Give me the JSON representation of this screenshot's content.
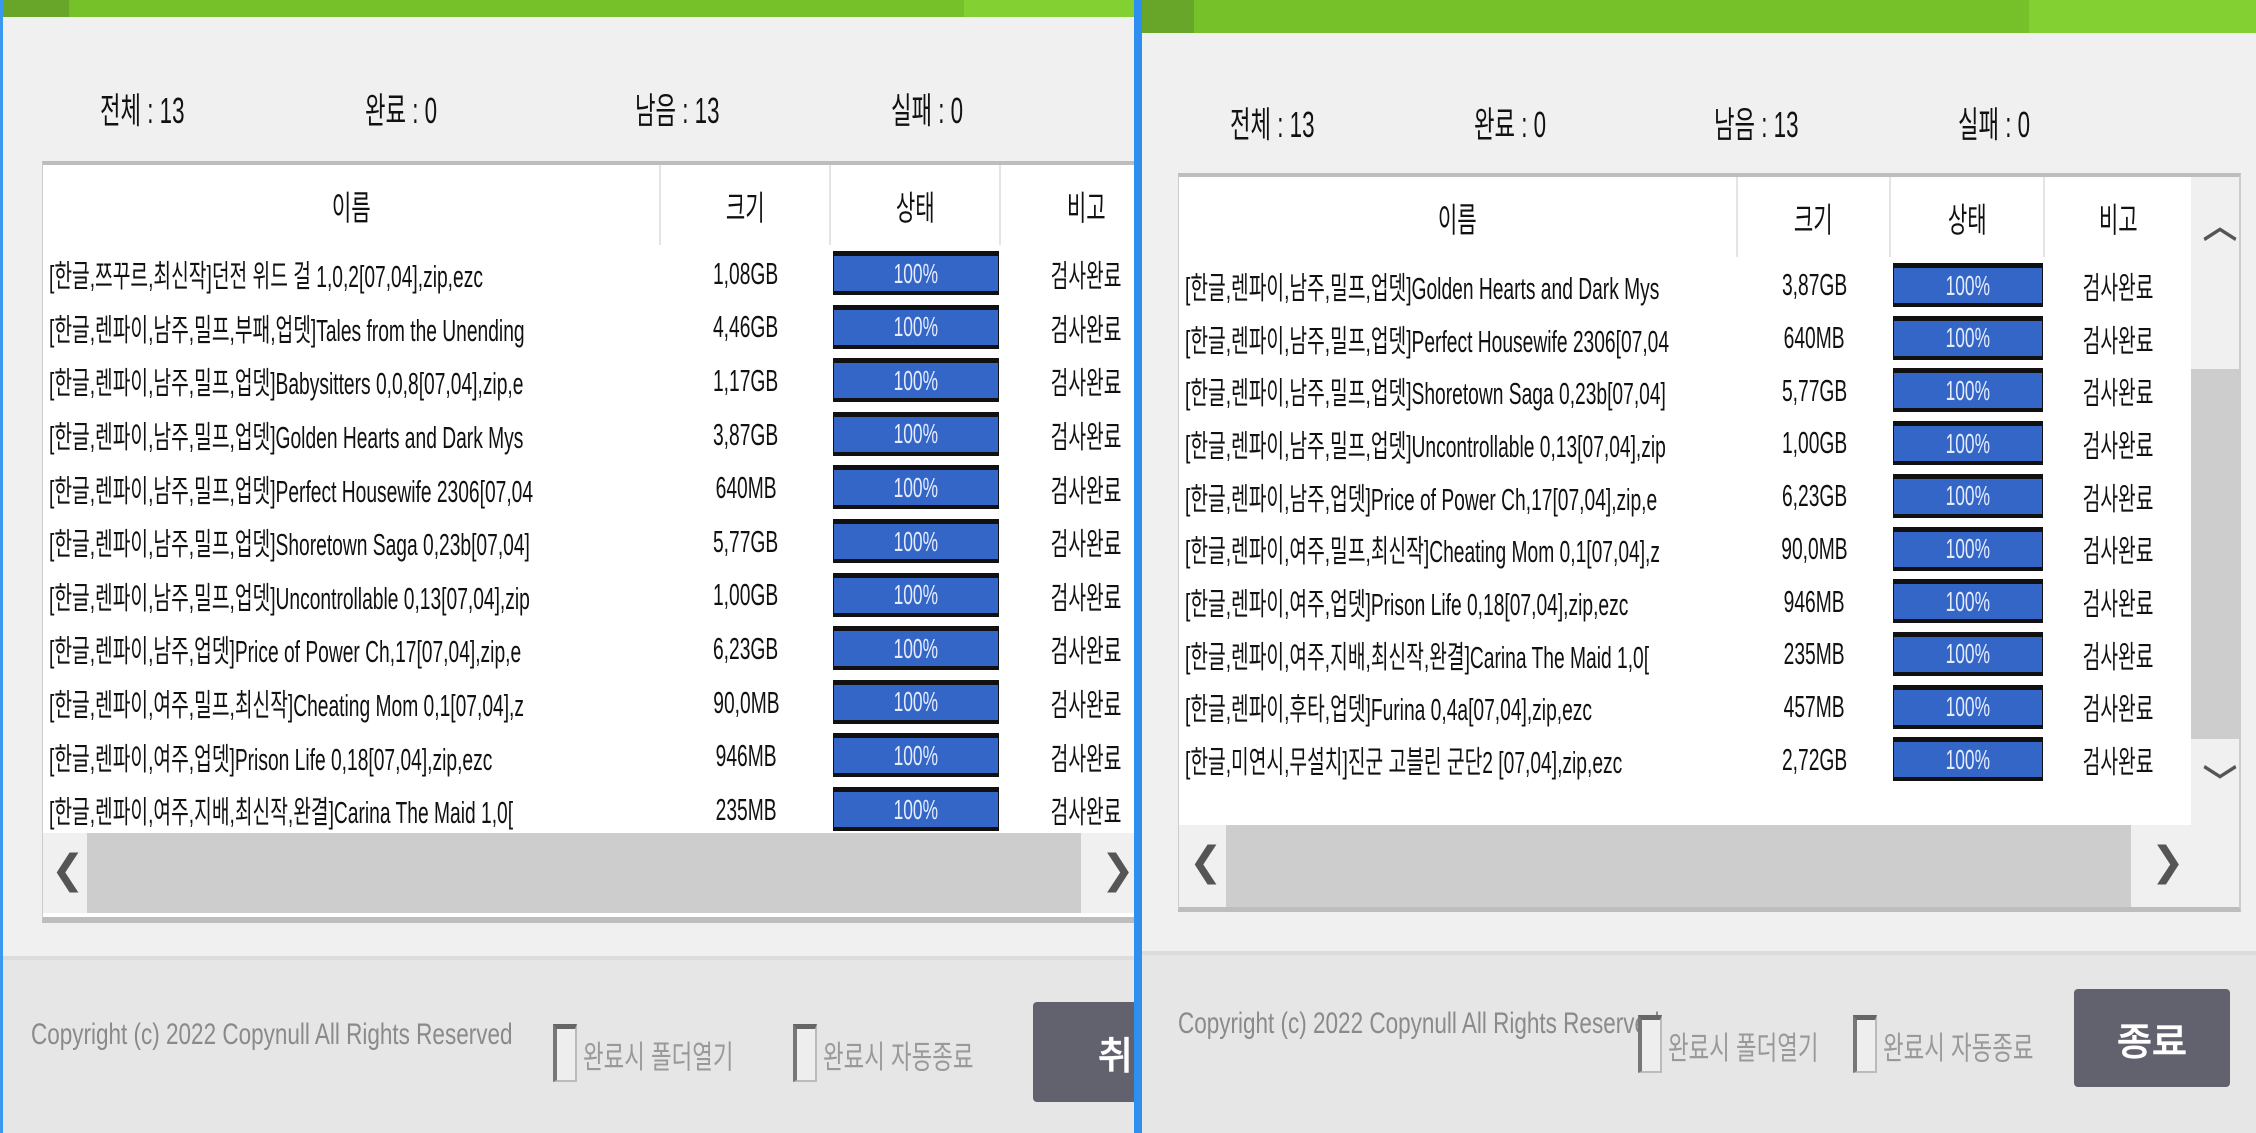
{
  "colors": {
    "accent_green": "#76c12a",
    "progress_blue": "#3366c6",
    "button_bg": "#62616e",
    "divider_blue": "#2f8ff0"
  },
  "left": {
    "stats": [
      "전체 : 13",
      "완료 : 0",
      "남음 : 13",
      "실패 : 0"
    ],
    "headers": [
      "이름",
      "크기",
      "상태",
      "비고"
    ],
    "rows": [
      {
        "name": "[한글,쯔꾸르,최신작]던전 위드 걸 1,0,2[07,04],zip,ezc",
        "size": "1,08GB",
        "progress": 100,
        "progress_label": "100%",
        "note": "검사완료"
      },
      {
        "name": "[한글,렌파이,남주,밀프,부패,업뎃]Tales from the Unending",
        "size": "4,46GB",
        "progress": 100,
        "progress_label": "100%",
        "note": "검사완료"
      },
      {
        "name": "[한글,렌파이,남주,밀프,업뎃]Babysitters 0,0,8[07,04],zip,e",
        "size": "1,17GB",
        "progress": 100,
        "progress_label": "100%",
        "note": "검사완료"
      },
      {
        "name": "[한글,렌파이,남주,밀프,업뎃]Golden Hearts and Dark Mys",
        "size": "3,87GB",
        "progress": 100,
        "progress_label": "100%",
        "note": "검사완료"
      },
      {
        "name": "[한글,렌파이,남주,밀프,업뎃]Perfect Housewife 2306[07,04",
        "size": "640MB",
        "progress": 100,
        "progress_label": "100%",
        "note": "검사완료"
      },
      {
        "name": "[한글,렌파이,남주,밀프,업뎃]Shoretown Saga 0,23b[07,04]",
        "size": "5,77GB",
        "progress": 100,
        "progress_label": "100%",
        "note": "검사완료"
      },
      {
        "name": "[한글,렌파이,남주,밀프,업뎃]Uncontrollable 0,13[07,04],zip",
        "size": "1,00GB",
        "progress": 100,
        "progress_label": "100%",
        "note": "검사완료"
      },
      {
        "name": "[한글,렌파이,남주,업뎃]Price of Power Ch,17[07,04],zip,e",
        "size": "6,23GB",
        "progress": 100,
        "progress_label": "100%",
        "note": "검사완료"
      },
      {
        "name": "[한글,렌파이,여주,밀프,최신작]Cheating Mom 0,1[07,04],z",
        "size": "90,0MB",
        "progress": 100,
        "progress_label": "100%",
        "note": "검사완료"
      },
      {
        "name": "[한글,렌파이,여주,업뎃]Prison Life 0,18[07,04],zip,ezc",
        "size": "946MB",
        "progress": 100,
        "progress_label": "100%",
        "note": "검사완료"
      },
      {
        "name": "[한글,렌파이,여주,지배,최신작,완결]Carina The Maid 1,0[",
        "size": "235MB",
        "progress": 100,
        "progress_label": "100%",
        "note": "검사완료"
      }
    ],
    "footer": {
      "copyright": "Copyright (c) 2022 Copynull All Rights Reserved",
      "check_open_folder": "완료시 폴더열기",
      "check_auto_exit": "완료시 자동종료",
      "button": "취소"
    }
  },
  "right": {
    "stats": [
      "전체 : 13",
      "완료 : 0",
      "남음 : 13",
      "실패 : 0"
    ],
    "headers": [
      "이름",
      "크기",
      "상태",
      "비고"
    ],
    "rows": [
      {
        "name": "[한글,렌파이,남주,밀프,업뎃]Golden Hearts and Dark Mys",
        "size": "3,87GB",
        "progress": 100,
        "progress_label": "100%",
        "note": "검사완료"
      },
      {
        "name": "[한글,렌파이,남주,밀프,업뎃]Perfect Housewife 2306[07,04",
        "size": "640MB",
        "progress": 100,
        "progress_label": "100%",
        "note": "검사완료"
      },
      {
        "name": "[한글,렌파이,남주,밀프,업뎃]Shoretown Saga 0,23b[07,04]",
        "size": "5,77GB",
        "progress": 100,
        "progress_label": "100%",
        "note": "검사완료"
      },
      {
        "name": "[한글,렌파이,남주,밀프,업뎃]Uncontrollable 0,13[07,04],zip",
        "size": "1,00GB",
        "progress": 100,
        "progress_label": "100%",
        "note": "검사완료"
      },
      {
        "name": "[한글,렌파이,남주,업뎃]Price of Power Ch,17[07,04],zip,e",
        "size": "6,23GB",
        "progress": 100,
        "progress_label": "100%",
        "note": "검사완료"
      },
      {
        "name": "[한글,렌파이,여주,밀프,최신작]Cheating Mom 0,1[07,04],z",
        "size": "90,0MB",
        "progress": 100,
        "progress_label": "100%",
        "note": "검사완료"
      },
      {
        "name": "[한글,렌파이,여주,업뎃]Prison Life 0,18[07,04],zip,ezc",
        "size": "946MB",
        "progress": 100,
        "progress_label": "100%",
        "note": "검사완료"
      },
      {
        "name": "[한글,렌파이,여주,지배,최신작,완결]Carina The Maid 1,0[",
        "size": "235MB",
        "progress": 100,
        "progress_label": "100%",
        "note": "검사완료"
      },
      {
        "name": "[한글,렌파이,후타,업뎃]Furina 0,4a[07,04],zip,ezc",
        "size": "457MB",
        "progress": 100,
        "progress_label": "100%",
        "note": "검사완료"
      },
      {
        "name": "[한글,미연시,무설치]진군 고블린 군단2 [07,04],zip,ezc",
        "size": "2,72GB",
        "progress": 100,
        "progress_label": "100%",
        "note": "검사완료"
      }
    ],
    "footer": {
      "copyright": "Copyright (c) 2022 Copynull All Rights Reserved",
      "check_open_folder": "완료시 폴더열기",
      "check_auto_exit": "완료시 자동종료",
      "button": "종료"
    }
  }
}
